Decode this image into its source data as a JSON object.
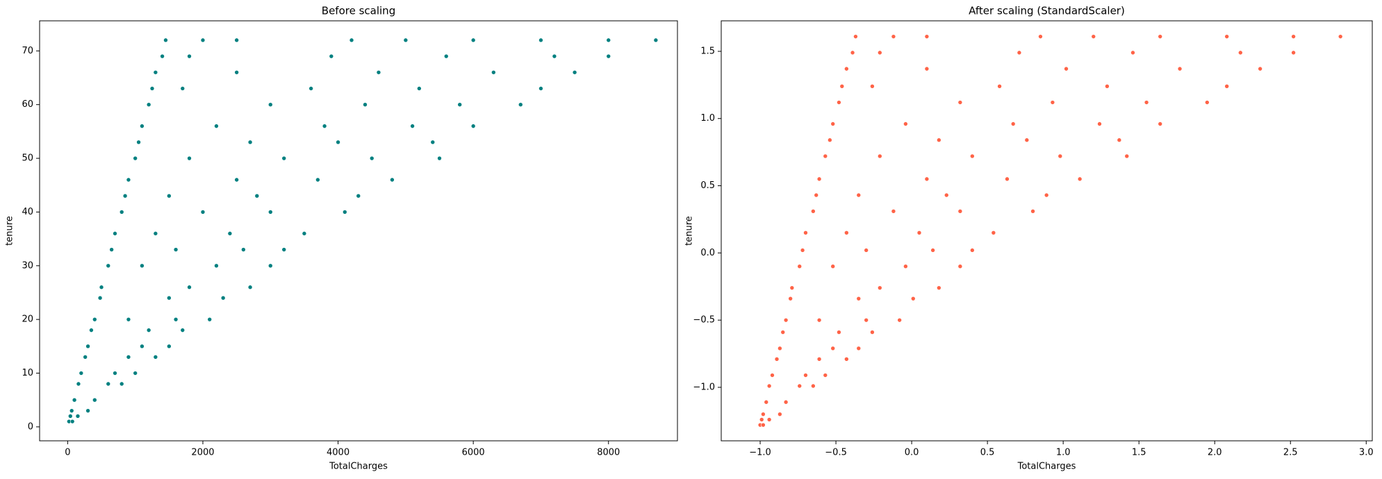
{
  "chart_data": [
    {
      "type": "scatter",
      "title": "Before scaling",
      "x_label": "TotalCharges",
      "y_label": "tenure",
      "color": "#008080",
      "xlim": [
        -415,
        9020
      ],
      "ylim": [
        -2.6,
        75.6
      ],
      "xticks": [
        0,
        2000,
        4000,
        6000,
        8000
      ],
      "yticks": [
        0,
        10,
        20,
        30,
        40,
        50,
        60,
        70
      ],
      "x": [
        20,
        70,
        40,
        150,
        60,
        300,
        100,
        400,
        160,
        600,
        800,
        200,
        700,
        1000,
        260,
        900,
        1300,
        300,
        1100,
        1500,
        350,
        1200,
        1700,
        400,
        900,
        1600,
        2100,
        480,
        1500,
        2300,
        500,
        1800,
        2700,
        600,
        1100,
        2200,
        3000,
        650,
        1600,
        2600,
        3200,
        700,
        1300,
        2400,
        3500,
        800,
        2000,
        3000,
        4100,
        850,
        1500,
        2800,
        4300,
        900,
        2500,
        3700,
        4800,
        1000,
        1800,
        3200,
        4500,
        5500,
        1050,
        2700,
        4000,
        5400,
        1100,
        2200,
        3800,
        5100,
        6000,
        1200,
        3000,
        4400,
        5800,
        6700,
        1250,
        1700,
        3600,
        5200,
        7000,
        1300,
        2500,
        4600,
        6300,
        7500,
        1400,
        1800,
        3900,
        5600,
        7200,
        8000,
        1450,
        2000,
        2500,
        4200,
        5000,
        6000,
        7000,
        8000,
        8700
      ],
      "values": [
        1,
        1,
        2,
        2,
        3,
        3,
        5,
        5,
        8,
        8,
        8,
        10,
        10,
        10,
        13,
        13,
        13,
        15,
        15,
        15,
        18,
        18,
        18,
        20,
        20,
        20,
        20,
        24,
        24,
        24,
        26,
        26,
        26,
        30,
        30,
        30,
        30,
        33,
        33,
        33,
        33,
        36,
        36,
        36,
        36,
        40,
        40,
        40,
        40,
        43,
        43,
        43,
        43,
        46,
        46,
        46,
        46,
        50,
        50,
        50,
        50,
        50,
        53,
        53,
        53,
        53,
        56,
        56,
        56,
        56,
        56,
        60,
        60,
        60,
        60,
        60,
        63,
        63,
        63,
        63,
        63,
        66,
        66,
        66,
        66,
        66,
        69,
        69,
        69,
        69,
        69,
        69,
        72,
        72,
        72,
        72,
        72,
        72,
        72,
        72,
        72
      ]
    },
    {
      "type": "scatter",
      "title": "After scaling (StandardScaler)",
      "x_label": "TotalCharges",
      "y_label": "tenure",
      "color": "#ff6347",
      "xlim": [
        -1.257,
        3.04
      ],
      "ylim": [
        -1.398,
        1.727
      ],
      "xticks": [
        {
          "value": -1.0,
          "label": "−1.0"
        },
        {
          "value": -0.5,
          "label": "−0.5"
        },
        {
          "value": 0,
          "label": "0.0"
        },
        0.5,
        {
          "value": 1,
          "label": "1.0"
        },
        1.5,
        {
          "value": 2,
          "label": "2.0"
        },
        2.5,
        {
          "value": 3,
          "label": "3.0"
        }
      ],
      "yticks": [
        {
          "value": -1.0,
          "label": "−1.0"
        },
        {
          "value": -0.5,
          "label": "−0.5"
        },
        {
          "value": 0,
          "label": "0.0"
        },
        0.5,
        {
          "value": 1,
          "label": "1.0"
        },
        1.5
      ],
      "x": [
        -1.0,
        -0.98,
        -0.99,
        -0.94,
        -0.98,
        -0.87,
        -0.96,
        -0.83,
        -0.94,
        -0.74,
        -0.65,
        -0.92,
        -0.7,
        -0.57,
        -0.89,
        -0.61,
        -0.43,
        -0.87,
        -0.52,
        -0.35,
        -0.85,
        -0.48,
        -0.26,
        -0.83,
        -0.61,
        -0.3,
        -0.08,
        -0.8,
        -0.35,
        0.01,
        -0.79,
        -0.21,
        0.18,
        -0.74,
        -0.52,
        -0.04,
        0.32,
        -0.72,
        -0.3,
        0.14,
        0.4,
        -0.7,
        -0.43,
        0.05,
        0.54,
        -0.65,
        -0.12,
        0.32,
        0.8,
        -0.63,
        -0.35,
        0.23,
        0.89,
        -0.61,
        0.1,
        0.63,
        1.11,
        -0.57,
        -0.21,
        0.4,
        0.98,
        1.42,
        -0.54,
        0.18,
        0.76,
        1.37,
        -0.52,
        -0.04,
        0.67,
        1.24,
        1.64,
        -0.48,
        0.32,
        0.93,
        1.55,
        1.95,
        -0.46,
        -0.26,
        0.58,
        1.29,
        2.08,
        -0.43,
        0.1,
        1.02,
        1.77,
        2.3,
        -0.39,
        -0.21,
        0.71,
        1.46,
        2.17,
        2.52,
        -0.37,
        -0.12,
        0.1,
        0.85,
        1.2,
        1.64,
        2.08,
        2.52,
        2.83
      ],
      "values": [
        -1.28,
        -1.28,
        -1.24,
        -1.24,
        -1.2,
        -1.2,
        -1.11,
        -1.11,
        -0.99,
        -0.99,
        -0.99,
        -0.91,
        -0.91,
        -0.91,
        -0.79,
        -0.79,
        -0.79,
        -0.71,
        -0.71,
        -0.71,
        -0.59,
        -0.59,
        -0.59,
        -0.5,
        -0.5,
        -0.5,
        -0.5,
        -0.34,
        -0.34,
        -0.34,
        -0.26,
        -0.26,
        -0.26,
        -0.1,
        -0.1,
        -0.1,
        -0.1,
        0.02,
        0.02,
        0.02,
        0.02,
        0.15,
        0.15,
        0.15,
        0.15,
        0.31,
        0.31,
        0.31,
        0.31,
        0.43,
        0.43,
        0.43,
        0.43,
        0.55,
        0.55,
        0.55,
        0.55,
        0.72,
        0.72,
        0.72,
        0.72,
        0.72,
        0.84,
        0.84,
        0.84,
        0.84,
        0.96,
        0.96,
        0.96,
        0.96,
        0.96,
        1.12,
        1.12,
        1.12,
        1.12,
        1.12,
        1.24,
        1.24,
        1.24,
        1.24,
        1.24,
        1.37,
        1.37,
        1.37,
        1.37,
        1.37,
        1.49,
        1.49,
        1.49,
        1.49,
        1.49,
        1.49,
        1.61,
        1.61,
        1.61,
        1.61,
        1.61,
        1.61,
        1.61,
        1.61,
        1.61
      ]
    }
  ]
}
